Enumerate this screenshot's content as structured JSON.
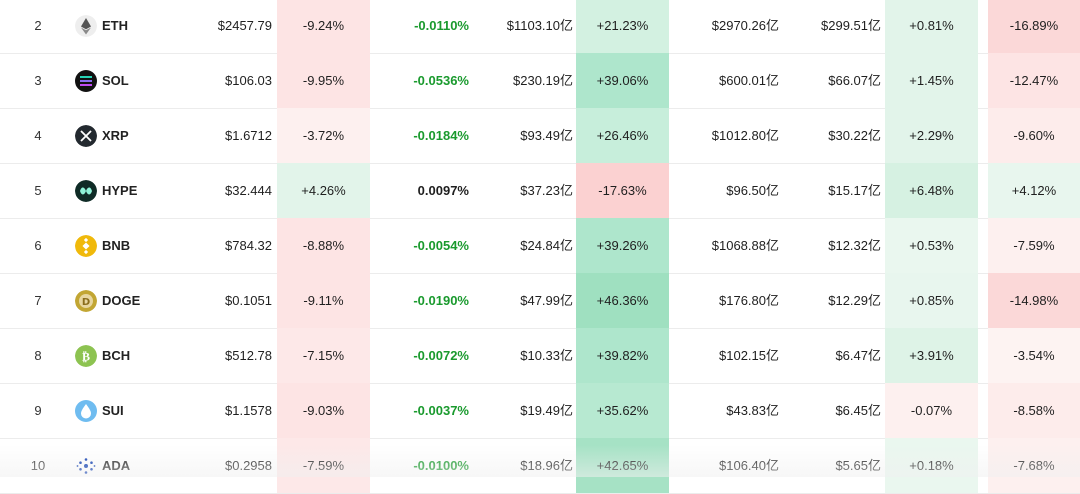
{
  "colors": {
    "positive_text": "#1a9a2e",
    "negative_text": "#1f1f1f",
    "red_strong": "#fbd1d1",
    "red_light": "#fde4e4",
    "red_faint": "#fdf0ef",
    "green_strong": "#a8e3c7",
    "green_mid": "#c7eedb",
    "green_light": "#e2f4ea"
  },
  "rows": [
    {
      "rank": "2",
      "icon": "eth-icon",
      "symbol": "ETH",
      "price": "$2457.79",
      "change": "-9.24%",
      "change_bg": "#fde4e4",
      "funding": "-0.0110%",
      "funding_positive": true,
      "mcap": "$1103.10亿",
      "mcap_change": "+21.23%",
      "mcap_change_bg": "#d3f1e1",
      "volume": "$2970.26亿",
      "oi": "$299.51亿",
      "oi_change": "+0.81%",
      "oi_change_bg": "#e2f4ea",
      "week": "-16.89%",
      "week_bg": "#fbd8d8"
    },
    {
      "rank": "3",
      "icon": "sol-icon",
      "symbol": "SOL",
      "price": "$106.03",
      "change": "-9.95%",
      "change_bg": "#fde4e4",
      "funding": "-0.0536%",
      "funding_positive": true,
      "mcap": "$230.19亿",
      "mcap_change": "+39.06%",
      "mcap_change_bg": "#aee6cc",
      "volume": "$600.01亿",
      "oi": "$66.07亿",
      "oi_change": "+1.45%",
      "oi_change_bg": "#e2f4ea",
      "week": "-12.47%",
      "week_bg": "#fde4e4"
    },
    {
      "rank": "4",
      "icon": "xrp-icon",
      "symbol": "XRP",
      "price": "$1.6712",
      "change": "-3.72%",
      "change_bg": "#fdf0ef",
      "funding": "-0.0184%",
      "funding_positive": true,
      "mcap": "$93.49亿",
      "mcap_change": "+26.46%",
      "mcap_change_bg": "#c7eedb",
      "volume": "$1012.80亿",
      "oi": "$30.22亿",
      "oi_change": "+2.29%",
      "oi_change_bg": "#e2f4ea",
      "week": "-9.60%",
      "week_bg": "#fdeceb"
    },
    {
      "rank": "5",
      "icon": "hype-icon",
      "symbol": "HYPE",
      "price": "$32.444",
      "change": "+4.26%",
      "change_bg": "#e2f4ea",
      "funding": "0.0097%",
      "funding_positive": false,
      "mcap": "$37.23亿",
      "mcap_change": "-17.63%",
      "mcap_change_bg": "#fbd1d1",
      "volume": "$96.50亿",
      "oi": "$15.17亿",
      "oi_change": "+6.48%",
      "oi_change_bg": "#d6f1e2",
      "week": "+4.12%",
      "week_bg": "#e8f6ee"
    },
    {
      "rank": "6",
      "icon": "bnb-icon",
      "symbol": "BNB",
      "price": "$784.32",
      "change": "-8.88%",
      "change_bg": "#fde4e4",
      "funding": "-0.0054%",
      "funding_positive": true,
      "mcap": "$24.84亿",
      "mcap_change": "+39.26%",
      "mcap_change_bg": "#aee6cc",
      "volume": "$1068.88亿",
      "oi": "$12.32亿",
      "oi_change": "+0.53%",
      "oi_change_bg": "#eaf7ef",
      "week": "-7.59%",
      "week_bg": "#fdf0ef"
    },
    {
      "rank": "7",
      "icon": "doge-icon",
      "symbol": "DOGE",
      "price": "$0.1051",
      "change": "-9.11%",
      "change_bg": "#fde4e4",
      "funding": "-0.0190%",
      "funding_positive": true,
      "mcap": "$47.99亿",
      "mcap_change": "+46.36%",
      "mcap_change_bg": "#9fe0c0",
      "volume": "$176.80亿",
      "oi": "$12.29亿",
      "oi_change": "+0.85%",
      "oi_change_bg": "#e8f6ee",
      "week": "-14.98%",
      "week_bg": "#fbd8d8"
    },
    {
      "rank": "8",
      "icon": "bch-icon",
      "symbol": "BCH",
      "price": "$512.78",
      "change": "-7.15%",
      "change_bg": "#fde8e8",
      "funding": "-0.0072%",
      "funding_positive": true,
      "mcap": "$10.33亿",
      "mcap_change": "+39.82%",
      "mcap_change_bg": "#aee6cc",
      "volume": "$102.15亿",
      "oi": "$6.47亿",
      "oi_change": "+3.91%",
      "oi_change_bg": "#def3e7",
      "week": "-3.54%",
      "week_bg": "#fdf3f2"
    },
    {
      "rank": "9",
      "icon": "sui-icon",
      "symbol": "SUI",
      "price": "$1.1578",
      "change": "-9.03%",
      "change_bg": "#fde4e4",
      "funding": "-0.0037%",
      "funding_positive": true,
      "mcap": "$19.49亿",
      "mcap_change": "+35.62%",
      "mcap_change_bg": "#b7e9d1",
      "volume": "$43.83亿",
      "oi": "$6.45亿",
      "oi_change": "-0.07%",
      "oi_change_bg": "#fdf0ef",
      "week": "-8.58%",
      "week_bg": "#fdeceb"
    },
    {
      "rank": "10",
      "icon": "ada-icon",
      "symbol": "ADA",
      "price": "$0.2958",
      "change": "-7.59%",
      "change_bg": "#fde8e8",
      "funding": "-0.0100%",
      "funding_positive": true,
      "mcap": "$18.96亿",
      "mcap_change": "+42.65%",
      "mcap_change_bg": "#a6e2c5",
      "volume": "$106.40亿",
      "oi": "$5.65亿",
      "oi_change": "+0.18%",
      "oi_change_bg": "#eaf7ef",
      "week": "-7.68%",
      "week_bg": "#fdf0ef"
    }
  ]
}
